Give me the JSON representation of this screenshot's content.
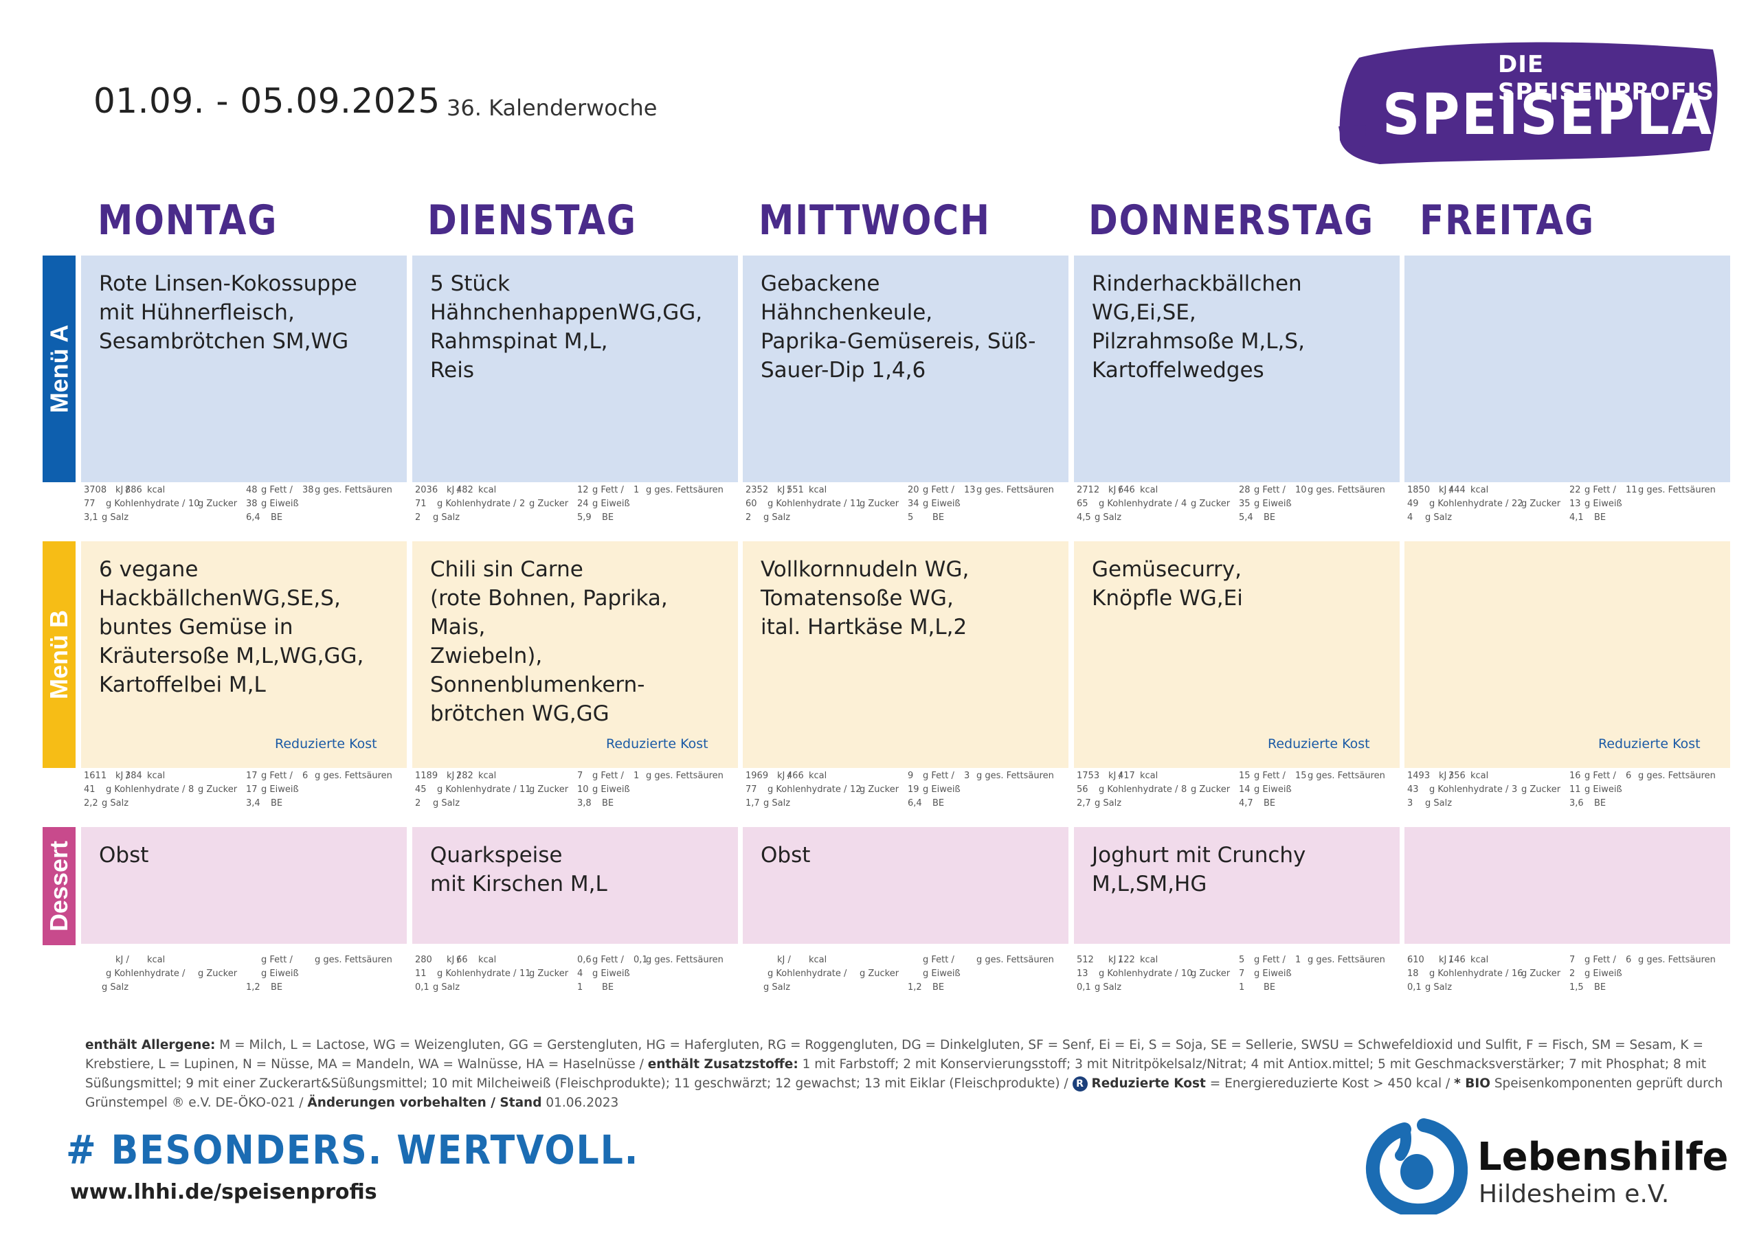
{
  "header": {
    "date_range": "01.09.  - 05.09.2025",
    "week": "36. Kalenderwoche",
    "logo_sub": "DIE SPEISENPROFIS",
    "logo_main": "SPEISEPLAN"
  },
  "days": [
    "MONTAG",
    "DIENSTAG",
    "MITTWOCH",
    "DONNERSTAG",
    "FREITAG"
  ],
  "rows": [
    {
      "label": "Menü A",
      "color": "#0e5fae",
      "cells": [
        {
          "text": "Rote Linsen-Kokossuppe\nmit Hühnerfleisch,\nSesambrötchen SM,WG",
          "reduced": ""
        },
        {
          "text": "5 Stück\nHähnchenhappenWG,GG,\nRahmspinat M,L,\nReis",
          "reduced": ""
        },
        {
          "text": "Gebackene Hähnchenkeule,\nPaprika-Gemüsereis, Süß-\nSauer-Dip 1,4,6",
          "reduced": ""
        },
        {
          "text": "Rinderhackbällchen\nWG,Ei,SE,\nPilzrahmsoße M,L,S,\nKartoffelwedges",
          "reduced": ""
        },
        {
          "text": "",
          "reduced": ""
        }
      ],
      "nutrition": [
        {
          "kj": "3708",
          "kcal": "886",
          "fett": "48",
          "ges": "38",
          "kh": "77",
          "zucker": "10",
          "eiweiss": "38",
          "salz": "3,1",
          "be": "6,4"
        },
        {
          "kj": "2036",
          "kcal": "482",
          "fett": "12",
          "ges": "1",
          "kh": "71",
          "zucker": "2",
          "eiweiss": "24",
          "salz": "2",
          "be": "5,9"
        },
        {
          "kj": "2352",
          "kcal": "551",
          "fett": "20",
          "ges": "13",
          "kh": "60",
          "zucker": "11",
          "eiweiss": "34",
          "salz": "2",
          "be": "5"
        },
        {
          "kj": "2712",
          "kcal": "646",
          "fett": "28",
          "ges": "10",
          "kh": "65",
          "zucker": "4",
          "eiweiss": "35",
          "salz": "4,5",
          "be": "5,4"
        },
        {
          "kj": "1850",
          "kcal": "444",
          "fett": "22",
          "ges": "11",
          "kh": "49",
          "zucker": "22",
          "eiweiss": "13",
          "salz": "4",
          "be": "4,1"
        }
      ]
    },
    {
      "label": "Menü B",
      "color": "#f6bd16",
      "cells": [
        {
          "text": "6 vegane\nHackbällchenWG,SE,S,\nbuntes Gemüse in\nKräutersoße M,L,WG,GG,\nKartoffelbei M,L",
          "reduced": "Reduzierte Kost"
        },
        {
          "text": "Chili sin Carne\n(rote Bohnen, Paprika, Mais,\nZwiebeln),\nSonnenblumenkern-\nbrötchen WG,GG",
          "reduced": "Reduzierte Kost"
        },
        {
          "text": "Vollkornnudeln WG,\nTomatensoße WG,\nital. Hartkäse M,L,2",
          "reduced": ""
        },
        {
          "text": "Gemüsecurry,\nKnöpfle WG,Ei",
          "reduced": "Reduzierte Kost"
        },
        {
          "text": "",
          "reduced": "Reduzierte Kost"
        }
      ],
      "nutrition": [
        {
          "kj": "1611",
          "kcal": "384",
          "fett": "17",
          "ges": "6",
          "kh": "41",
          "zucker": "8",
          "eiweiss": "17",
          "salz": "2,2",
          "be": "3,4"
        },
        {
          "kj": "1189",
          "kcal": "282",
          "fett": "7",
          "ges": "1",
          "kh": "45",
          "zucker": "11",
          "eiweiss": "10",
          "salz": "2",
          "be": "3,8"
        },
        {
          "kj": "1969",
          "kcal": "466",
          "fett": "9",
          "ges": "3",
          "kh": "77",
          "zucker": "12",
          "eiweiss": "19",
          "salz": "1,7",
          "be": "6,4"
        },
        {
          "kj": "1753",
          "kcal": "417",
          "fett": "15",
          "ges": "15",
          "kh": "56",
          "zucker": "8",
          "eiweiss": "14",
          "salz": "2,7",
          "be": "4,7"
        },
        {
          "kj": "1493",
          "kcal": "356",
          "fett": "16",
          "ges": "6",
          "kh": "43",
          "zucker": "3",
          "eiweiss": "11",
          "salz": "3",
          "be": "3,6"
        }
      ]
    },
    {
      "label": "Dessert",
      "color": "#c84a8c",
      "cells": [
        {
          "text": "Obst",
          "reduced": ""
        },
        {
          "text": "Quarkspeise\nmit Kirschen M,L",
          "reduced": ""
        },
        {
          "text": "Obst",
          "reduced": ""
        },
        {
          "text": "Joghurt mit Crunchy\nM,L,SM,HG",
          "reduced": ""
        },
        {
          "text": "",
          "reduced": ""
        }
      ],
      "nutrition": [
        {
          "kj": "",
          "kcal": "",
          "fett": "",
          "ges": "",
          "kh": "",
          "zucker": "",
          "eiweiss": "",
          "salz": "",
          "be": "1,2"
        },
        {
          "kj": "280",
          "kcal": "66",
          "fett": "0,6",
          "ges": "0,1",
          "kh": "11",
          "zucker": "11",
          "eiweiss": "4",
          "salz": "0,1",
          "be": "1"
        },
        {
          "kj": "",
          "kcal": "",
          "fett": "",
          "ges": "",
          "kh": "",
          "zucker": "",
          "eiweiss": "",
          "salz": "",
          "be": "1,2"
        },
        {
          "kj": "512",
          "kcal": "122",
          "fett": "5",
          "ges": "1",
          "kh": "13",
          "zucker": "10",
          "eiweiss": "7",
          "salz": "0,1",
          "be": "1"
        },
        {
          "kj": "610",
          "kcal": "146",
          "fett": "7",
          "ges": "6",
          "kh": "18",
          "zucker": "16",
          "eiweiss": "2",
          "salz": "0,1",
          "be": "1,5"
        }
      ]
    }
  ],
  "nutrition_labels": {
    "kj": "kJ /",
    "kcal": "kcal",
    "fett": "g Fett /",
    "ges": "g ges. Fettsäuren",
    "kh": "g Kohlenhydrate /",
    "zucker": "g Zucker",
    "eiweiss": "g Eiweiß",
    "salz": "g Salz",
    "be": "BE"
  },
  "legend": {
    "allergene_label": "enthält Allergene:",
    "allergene_text": " M = Milch, L = Lactose, WG = Weizengluten, GG = Gerstengluten, HG = Hafergluten, RG = Roggengluten, DG = Dinkelgluten, SF = Senf, Ei = Ei, S = Soja, SE = Sellerie, SWSU = Schwefeldioxid und Sulfit, F = Fisch, SM = Sesam, K = Krebstiere, L = Lupinen, N = Nüsse, MA = Mandeln, WA = Walnüsse, HA =  Haselnüsse / ",
    "zusatz_label": "enthält Zusatzstoffe:",
    "zusatz_text": " 1 mit Farbstoff; 2 mit Konservierungsstoff; 3 mit Nitritpökelsalz/Nitrat; 4 mit Antiox.mittel; 5 mit Geschmacksverstärker; 7 mit Phosphat; 8 mit Süßungsmittel; 9 mit einer Zuckerart&Süßungsmittel; 10 mit Milcheiweiß (Fleischprodukte); 11 geschwärzt; 12 gewachst; 13 mit Eiklar (Fleischprodukte) / ",
    "badge": "R",
    "reduziert_label": "Reduzierte Kost",
    "reduziert_text": " = Energiereduzierte Kost > 450 kcal / ",
    "bio_label": "* BIO",
    "bio_text": " Speisenkomponenten geprüft durch Grünstempel ® e.V. DE-ÖKO-021 / ",
    "stand_label": "Änderungen vorbehalten / Stand",
    "stand_text": "  01.06.2023"
  },
  "footer": {
    "slogan": "# BESONDERS. WERTVOLL.",
    "url": "www.lhhi.de/speisenprofis",
    "org_name": "Lebenshilfe",
    "org_sub": "Hildesheim e.V."
  },
  "colors": {
    "purple": "#4a2b8a",
    "blue": "#1b6cb3",
    "menu_a_bg": "#d3dff1",
    "menu_b_bg": "#fcf0d6",
    "dessert_bg": "#f1dbeb"
  }
}
